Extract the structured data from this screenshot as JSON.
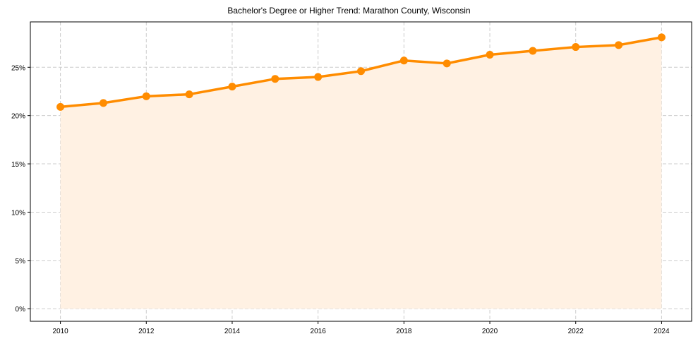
{
  "chart_data": {
    "type": "area",
    "title": "Bachelor's Degree or Higher Trend: Marathon County, Wisconsin",
    "xlabel": "",
    "ylabel": "",
    "x": [
      2010,
      2011,
      2012,
      2013,
      2014,
      2015,
      2016,
      2017,
      2018,
      2019,
      2020,
      2021,
      2022,
      2023,
      2024
    ],
    "series": [
      {
        "name": "Bachelor's Degree or Higher",
        "values": [
          20.9,
          21.3,
          22.0,
          22.2,
          23.0,
          23.8,
          24.0,
          24.6,
          25.7,
          25.4,
          26.3,
          26.7,
          27.1,
          27.3,
          28.1
        ],
        "color": "#ff8c00",
        "fill_color": "#fff1e3",
        "marker": "circle"
      }
    ],
    "xticks": [
      "2010",
      "2012",
      "2014",
      "2016",
      "2018",
      "2020",
      "2022",
      "2024"
    ],
    "yticks": [
      "0%",
      "5%",
      "10%",
      "15%",
      "20%",
      "25%"
    ],
    "ylim": [
      -1.3,
      29.7
    ],
    "xlim": [
      2009.3,
      2024.7
    ],
    "grid": true,
    "legend": null
  }
}
